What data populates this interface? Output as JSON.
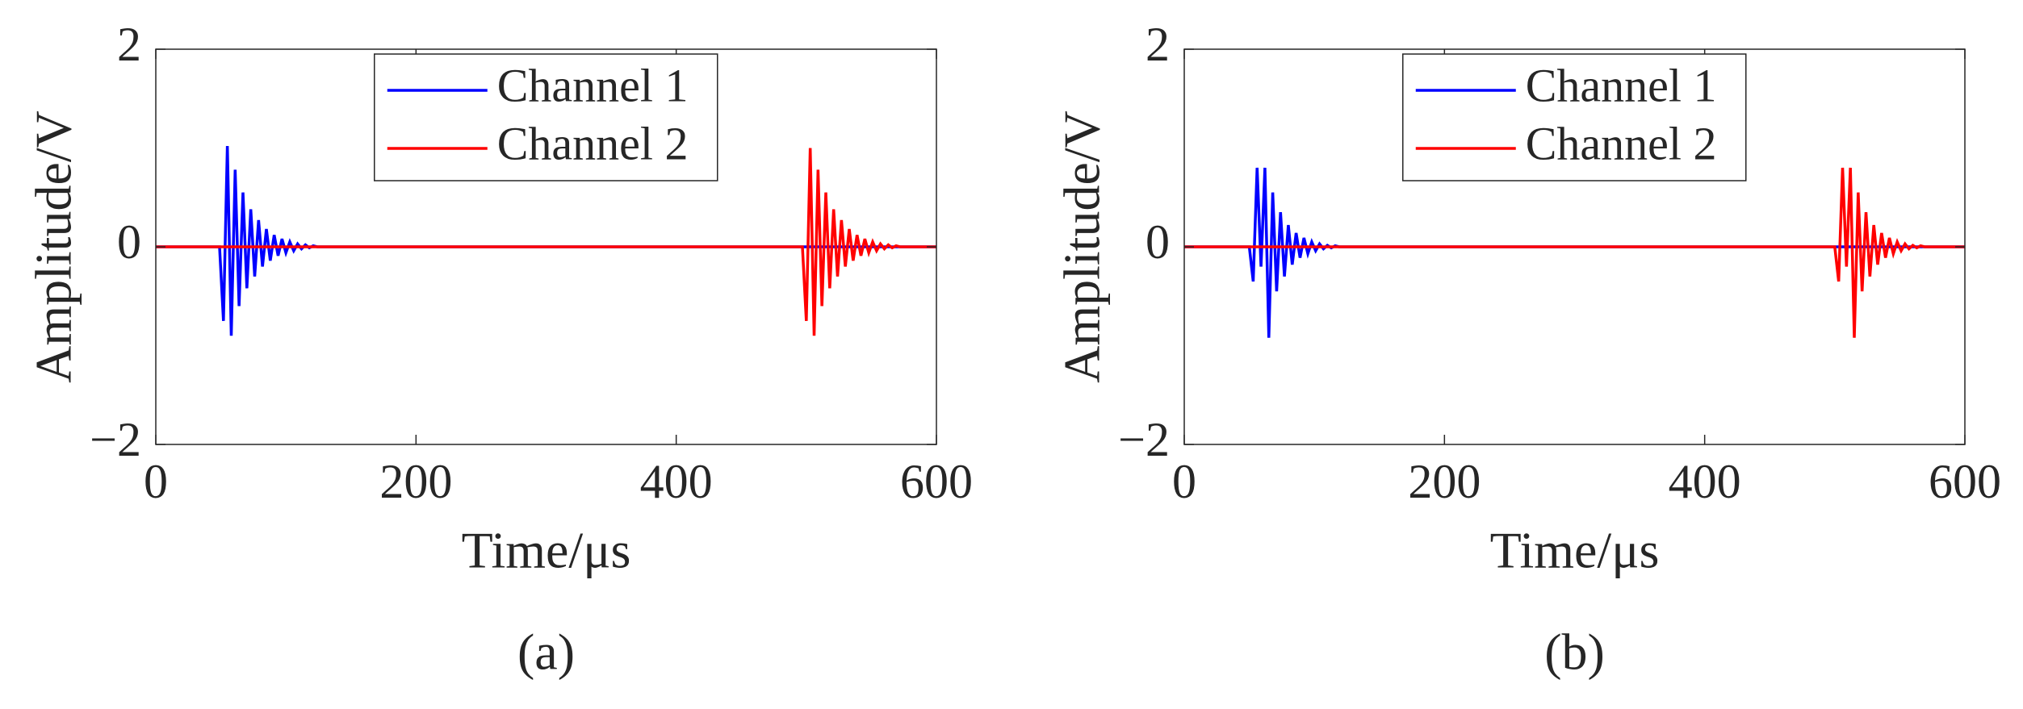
{
  "chart_data": [
    {
      "type": "line",
      "title": "(a)",
      "xlabel": "Time/μs",
      "ylabel": "Amplitude/V",
      "xlim": [
        0,
        600
      ],
      "xticks": [
        0,
        200,
        400,
        600
      ],
      "ylim": [
        -2,
        2
      ],
      "yticks": [
        {
          "value": -2,
          "label": "−2"
        },
        0,
        2
      ],
      "legend": "upper center",
      "series": [
        {
          "name": "Channel 1",
          "color": "#0000ff",
          "x": [
            0,
            49,
            52,
            55,
            58,
            61,
            64,
            67,
            70,
            73,
            76,
            79,
            82,
            85,
            88,
            91,
            94,
            97,
            100,
            103,
            106,
            109,
            112,
            115,
            118,
            121,
            124,
            600
          ],
          "values": [
            0,
            0,
            -0.75,
            1.02,
            -0.9,
            0.78,
            -0.6,
            0.55,
            -0.42,
            0.38,
            -0.3,
            0.27,
            -0.2,
            0.18,
            -0.14,
            0.12,
            -0.09,
            0.08,
            -0.06,
            0.05,
            -0.04,
            0.03,
            -0.02,
            0.02,
            -0.01,
            0.01,
            0,
            0
          ]
        },
        {
          "name": "Channel 2",
          "color": "#ff0000",
          "x": [
            0,
            497,
            500,
            503,
            506,
            509,
            512,
            515,
            518,
            521,
            524,
            527,
            530,
            533,
            536,
            539,
            542,
            545,
            548,
            551,
            554,
            557,
            560,
            563,
            566,
            569,
            572,
            600
          ],
          "values": [
            0,
            0,
            -0.75,
            1.0,
            -0.9,
            0.78,
            -0.6,
            0.55,
            -0.42,
            0.38,
            -0.3,
            0.27,
            -0.2,
            0.18,
            -0.14,
            0.12,
            -0.09,
            0.08,
            -0.06,
            0.05,
            -0.04,
            0.03,
            -0.02,
            0.02,
            -0.01,
            0.01,
            0,
            0
          ]
        }
      ]
    },
    {
      "type": "line",
      "title": "(b)",
      "xlabel": "Time/μs",
      "ylabel": "Amplitude/V",
      "xlim": [
        0,
        600
      ],
      "xticks": [
        0,
        200,
        400,
        600
      ],
      "ylim": [
        -2,
        2
      ],
      "yticks": [
        {
          "value": -2,
          "label": "−2"
        },
        0,
        2
      ],
      "legend": "upper center",
      "series": [
        {
          "name": "Channel 1",
          "color": "#0000ff",
          "x": [
            0,
            50,
            53,
            56,
            59,
            62,
            65,
            68,
            71,
            74,
            77,
            80,
            83,
            86,
            89,
            92,
            95,
            98,
            101,
            104,
            107,
            110,
            113,
            116,
            119,
            600
          ],
          "values": [
            0,
            0,
            -0.35,
            0.8,
            -0.2,
            0.8,
            -0.92,
            0.55,
            -0.45,
            0.35,
            -0.3,
            0.22,
            -0.18,
            0.14,
            -0.11,
            0.09,
            -0.07,
            0.05,
            -0.04,
            0.03,
            -0.02,
            0.015,
            -0.01,
            0.01,
            0,
            0
          ]
        },
        {
          "name": "Channel 2",
          "color": "#ff0000",
          "x": [
            0,
            500,
            503,
            506,
            509,
            512,
            515,
            518,
            521,
            524,
            527,
            530,
            533,
            536,
            539,
            542,
            545,
            548,
            551,
            554,
            557,
            560,
            563,
            566,
            569,
            600
          ],
          "values": [
            0,
            0,
            -0.35,
            0.8,
            -0.2,
            0.8,
            -0.92,
            0.55,
            -0.45,
            0.35,
            -0.3,
            0.22,
            -0.18,
            0.14,
            -0.11,
            0.09,
            -0.07,
            0.05,
            -0.04,
            0.03,
            -0.02,
            0.015,
            -0.01,
            0.01,
            0,
            0
          ]
        }
      ]
    }
  ]
}
